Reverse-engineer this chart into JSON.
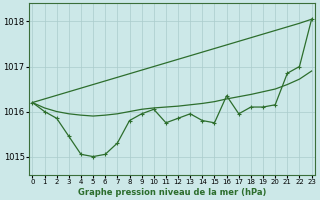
{
  "title": "Graphe pression niveau de la mer (hPa)",
  "background_color": "#cce8e8",
  "grid_color": "#aacccc",
  "line_color": "#2d6e2d",
  "x_ticks": [
    0,
    1,
    2,
    3,
    4,
    5,
    6,
    7,
    8,
    9,
    10,
    11,
    12,
    13,
    14,
    15,
    16,
    17,
    18,
    19,
    20,
    21,
    22,
    23
  ],
  "y_ticks": [
    1015,
    1016,
    1017,
    1018
  ],
  "ylim": [
    1014.6,
    1018.4
  ],
  "xlim": [
    -0.3,
    23.3
  ],
  "jagged": [
    1016.2,
    1016.0,
    1015.85,
    1015.45,
    1015.05,
    1015.0,
    1015.05,
    1015.3,
    1015.8,
    1015.95,
    1016.05,
    1015.75,
    1015.85,
    1015.95,
    1015.8,
    1015.75,
    1016.35,
    1015.95,
    1016.1,
    1016.1,
    1016.15,
    1016.85,
    1017.0,
    1018.05
  ],
  "smooth_upper": [
    1016.2,
    1016.28,
    1016.36,
    1016.44,
    1016.52,
    1016.6,
    1016.68,
    1016.76,
    1016.84,
    1016.92,
    1017.0,
    1017.08,
    1017.16,
    1017.24,
    1017.32,
    1017.4,
    1017.48,
    1017.56,
    1017.64,
    1017.72,
    1017.8,
    1017.88,
    1017.96,
    1018.05
  ],
  "smooth_lower": [
    1016.2,
    1016.08,
    1016.0,
    1015.95,
    1015.92,
    1015.9,
    1015.92,
    1015.95,
    1016.0,
    1016.05,
    1016.08,
    1016.1,
    1016.12,
    1016.15,
    1016.18,
    1016.22,
    1016.28,
    1016.33,
    1016.38,
    1016.44,
    1016.5,
    1016.6,
    1016.72,
    1016.9
  ]
}
